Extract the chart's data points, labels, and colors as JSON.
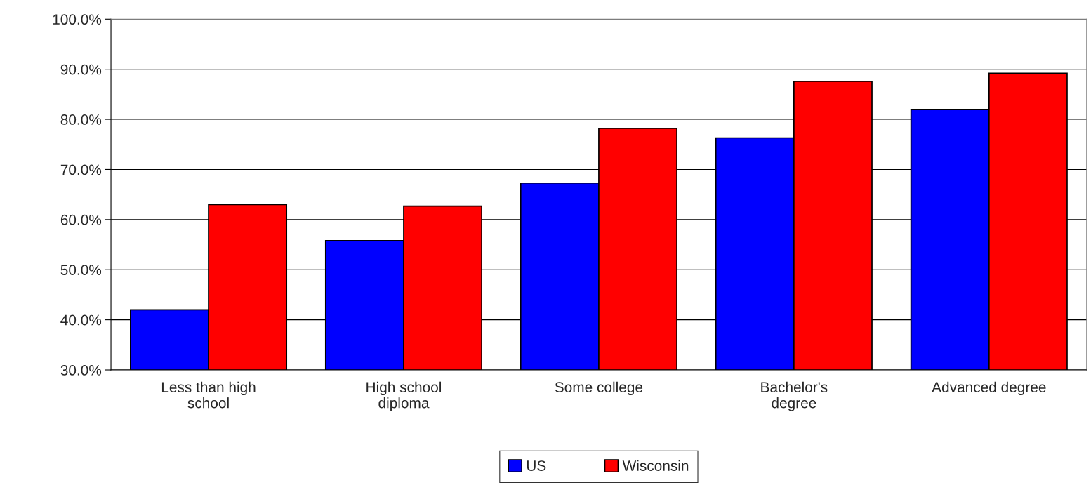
{
  "chart_data": {
    "type": "bar",
    "categories": [
      "Less than high\nschool",
      "High school\ndiploma",
      "Some college",
      "Bachelor's\ndegree",
      "Advanced degree"
    ],
    "series": [
      {
        "name": "US",
        "color": "#0000ff",
        "values": [
          42.0,
          55.8,
          67.3,
          76.3,
          82.0
        ]
      },
      {
        "name": "Wisconsin",
        "color": "#ff0000",
        "values": [
          63.0,
          62.7,
          78.2,
          87.6,
          89.2
        ]
      }
    ],
    "ylim": [
      30,
      100
    ],
    "yticks": [
      {
        "value": 30,
        "label": "30.0%"
      },
      {
        "value": 40,
        "label": "40.0%"
      },
      {
        "value": 50,
        "label": "50.0%"
      },
      {
        "value": 60,
        "label": "60.0%"
      },
      {
        "value": 70,
        "label": "70.0%"
      },
      {
        "value": 80,
        "label": "80.0%"
      },
      {
        "value": 90,
        "label": "90.0%"
      },
      {
        "value": 100,
        "label": "100.0%"
      }
    ],
    "grid": "y",
    "legend": "bottom"
  }
}
